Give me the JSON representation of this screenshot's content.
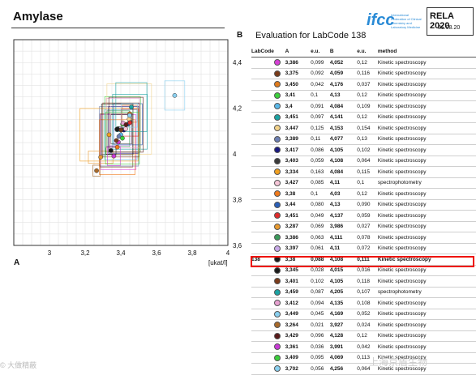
{
  "header": {
    "title": "Amylase",
    "logo_text": "ifcc",
    "logo_subtitle": "International Federation of Clinical Chemistry and Laboratory Medicine",
    "rela_title": "RELA 2020",
    "rela_date": "31.08.20",
    "eval_axis_label": "B",
    "eval_title": "Evaluation for LabCode 138"
  },
  "table": {
    "headers": [
      "LabCode",
      "A",
      "e.u.",
      "B",
      "e.u.",
      "method"
    ],
    "rows": [
      {
        "labcode": "",
        "color": "#d63fd6",
        "a": "3,386",
        "ea": "0,099",
        "b": "4,052",
        "eb": "0,12",
        "method": "Kinetic spectroscopy"
      },
      {
        "labcode": "",
        "color": "#7a3b1a",
        "a": "3,375",
        "ea": "0,092",
        "b": "4,059",
        "eb": "0,116",
        "method": "Kinetic spectroscopy"
      },
      {
        "labcode": "",
        "color": "#e07b1c",
        "a": "3,450",
        "ea": "0,042",
        "b": "4,176",
        "eb": "0,037",
        "method": "Kinetic spectroscopy"
      },
      {
        "labcode": "",
        "color": "#3ccf3c",
        "a": "3,41",
        "ea": "0,1",
        "b": "4,13",
        "eb": "0,12",
        "method": "Kinetic spectroscopy"
      },
      {
        "labcode": "",
        "color": "#5ab8e8",
        "a": "3,4",
        "ea": "0,091",
        "b": "4,084",
        "eb": "0,109",
        "method": "Kinetic spectroscopy"
      },
      {
        "labcode": "",
        "color": "#1aa3a3",
        "a": "3,451",
        "ea": "0,097",
        "b": "4,141",
        "eb": "0,12",
        "method": "Kinetic spectroscopy"
      },
      {
        "labcode": "",
        "color": "#f2d28a",
        "a": "3,447",
        "ea": "0,125",
        "b": "4,153",
        "eb": "0,154",
        "method": "Kinetic spectroscopy"
      },
      {
        "labcode": "",
        "color": "#6c7fb3",
        "a": "3,389",
        "ea": "0,11",
        "b": "4,077",
        "eb": "0,13",
        "method": "Kinetic spectroscopy"
      },
      {
        "labcode": "",
        "color": "#1a1a80",
        "a": "3,417",
        "ea": "0,086",
        "b": "4,105",
        "eb": "0,102",
        "method": "Kinetic spectroscopy"
      },
      {
        "labcode": "",
        "color": "#3a3a3a",
        "a": "3,403",
        "ea": "0,059",
        "b": "4,108",
        "eb": "0,064",
        "method": "Kinetic spectroscopy"
      },
      {
        "labcode": "",
        "color": "#f0a020",
        "a": "3,334",
        "ea": "0,163",
        "b": "4,084",
        "eb": "0,115",
        "method": "Kinetic spectroscopy"
      },
      {
        "labcode": "",
        "color": "#f6c6d8",
        "a": "3,427",
        "ea": "0,085",
        "b": "4,11",
        "eb": "0,1",
        "method": "spectrophotometry"
      },
      {
        "labcode": "",
        "color": "#f07a1c",
        "a": "3,38",
        "ea": "0,1",
        "b": "4,03",
        "eb": "0,12",
        "method": "Kinetic spectroscopy"
      },
      {
        "labcode": "",
        "color": "#2a5fb8",
        "a": "3,44",
        "ea": "0,080",
        "b": "4,13",
        "eb": "0,090",
        "method": "Kinetic spectroscopy"
      },
      {
        "labcode": "",
        "color": "#e02a2a",
        "a": "3,451",
        "ea": "0,049",
        "b": "4,137",
        "eb": "0,059",
        "method": "Kinetic spectroscopy"
      },
      {
        "labcode": "",
        "color": "#e89a30",
        "a": "3,287",
        "ea": "0,069",
        "b": "3,986",
        "eb": "0,027",
        "method": "Kinetic spectroscopy"
      },
      {
        "labcode": "",
        "color": "#3a9a5a",
        "a": "3,386",
        "ea": "0,063",
        "b": "4,111",
        "eb": "0,078",
        "method": "Kinetic spectroscopy"
      },
      {
        "labcode": "",
        "color": "#c8a8e8",
        "a": "3,397",
        "ea": "0,061",
        "b": "4,11",
        "eb": "0,072",
        "method": "Kinetic spectroscopy"
      },
      {
        "labcode": "138",
        "color": "#1a1a1a",
        "a": "3,38",
        "ea": "0,088",
        "b": "4,108",
        "eb": "0,111",
        "method": "Kinetic spectroscopy",
        "highlight": true
      },
      {
        "labcode": "",
        "color": "#1a1a1a",
        "a": "3,345",
        "ea": "0,028",
        "b": "4,015",
        "eb": "0,016",
        "method": "Kinetic spectroscopy"
      },
      {
        "labcode": "",
        "color": "#7a3b1a",
        "a": "3,401",
        "ea": "0,102",
        "b": "4,105",
        "eb": "0,118",
        "method": "Kinetic spectroscopy"
      },
      {
        "labcode": "",
        "color": "#1aa3a3",
        "a": "3,459",
        "ea": "0,087",
        "b": "4,205",
        "eb": "0,107",
        "method": "spectrophotometry"
      },
      {
        "labcode": "",
        "color": "#e6a0d0",
        "a": "3,412",
        "ea": "0,094",
        "b": "4,135",
        "eb": "0,108",
        "method": "Kinetic spectroscopy"
      },
      {
        "labcode": "",
        "color": "#8ad0f0",
        "a": "3,449",
        "ea": "0,045",
        "b": "4,169",
        "eb": "0,052",
        "method": "Kinetic spectroscopy"
      },
      {
        "labcode": "",
        "color": "#a86a2a",
        "a": "3,264",
        "ea": "0,021",
        "b": "3,927",
        "eb": "0,024",
        "method": "Kinetic spectroscopy"
      },
      {
        "labcode": "",
        "color": "#5a1a1a",
        "a": "3,429",
        "ea": "0,096",
        "b": "4,128",
        "eb": "0,12",
        "method": "Kinetic spectroscopy"
      },
      {
        "labcode": "",
        "color": "#c93ad6",
        "a": "3,361",
        "ea": "0,036",
        "b": "3,991",
        "eb": "0,042",
        "method": "Kinetic spectroscopy"
      },
      {
        "labcode": "",
        "color": "#3ccf3c",
        "a": "3,409",
        "ea": "0,095",
        "b": "4,069",
        "eb": "0,113",
        "method": "Kinetic spectroscopy"
      },
      {
        "labcode": "",
        "color": "#8ad0f0",
        "a": "3,702",
        "ea": "0,056",
        "b": "4,256",
        "eb": "0,064",
        "method": "Kinetic spectroscopy"
      }
    ]
  },
  "chart_data": {
    "type": "scatter",
    "title": "Amylase",
    "xlabel": "A",
    "ylabel": "B",
    "unit_label": "[ukat/l]",
    "xlim": [
      2.8,
      4.0
    ],
    "ylim": [
      3.6,
      4.5
    ],
    "xticks": [
      "3",
      "3,2",
      "3,4",
      "3,6",
      "3,8",
      "4"
    ],
    "yticks": [
      "3,6",
      "3,8",
      "4",
      "4,2",
      "4,4"
    ],
    "grid": true,
    "highlight_labcode": "138",
    "note": "Points and uncertainty boxes use table rows: x=A±e.u.(A), y=B±e.u.(B)"
  },
  "watermarks": {
    "left": "© 大做精蔽",
    "right": "上海京盾生物"
  }
}
